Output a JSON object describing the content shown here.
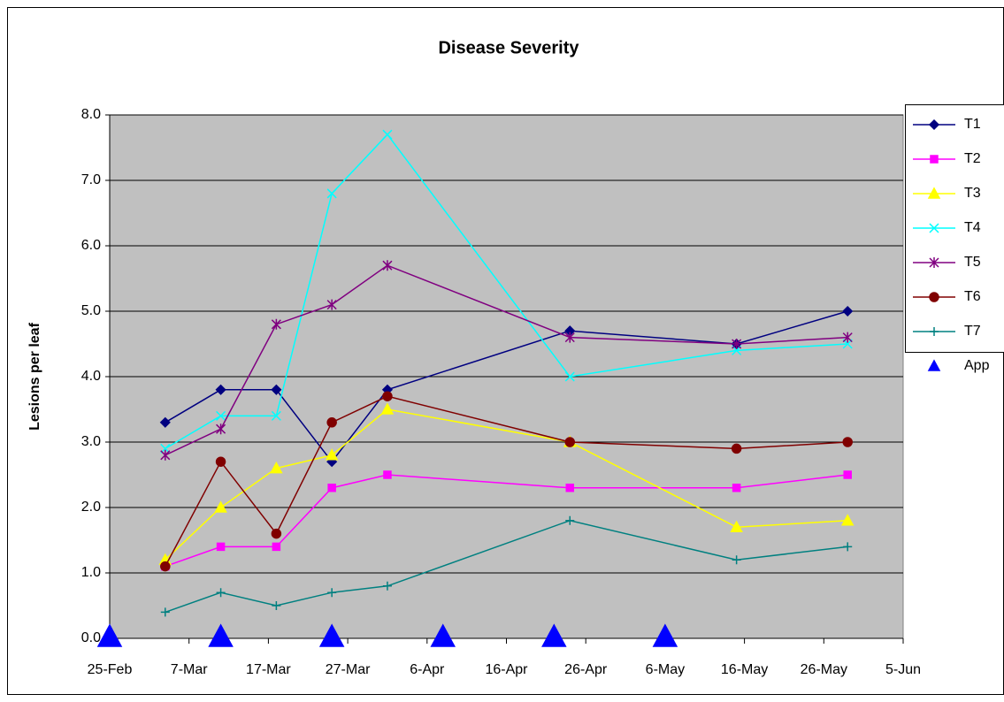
{
  "chart_data": {
    "type": "line",
    "title": "Disease Severity",
    "y_label": "Lesions per leaf",
    "x": [
      63,
      70,
      77,
      84,
      91,
      114,
      135,
      149
    ],
    "xlim": [
      56,
      156
    ],
    "xticks": [
      {
        "value": 56,
        "label": "25-Feb"
      },
      {
        "value": 66,
        "label": "7-Mar"
      },
      {
        "value": 76,
        "label": "17-Mar"
      },
      {
        "value": 86,
        "label": "27-Mar"
      },
      {
        "value": 96,
        "label": "6-Apr"
      },
      {
        "value": 106,
        "label": "16-Apr"
      },
      {
        "value": 116,
        "label": "26-Apr"
      },
      {
        "value": 126,
        "label": "6-May"
      },
      {
        "value": 136,
        "label": "16-May"
      },
      {
        "value": 146,
        "label": "26-May"
      },
      {
        "value": 156,
        "label": "5-Jun"
      }
    ],
    "ylim": [
      0,
      8
    ],
    "yticks": [
      {
        "value": 0,
        "label": "0.0"
      },
      {
        "value": 1,
        "label": "1.0"
      },
      {
        "value": 2,
        "label": "2.0"
      },
      {
        "value": 3,
        "label": "3.0"
      },
      {
        "value": 4,
        "label": "4.0"
      },
      {
        "value": 5,
        "label": "5.0"
      },
      {
        "value": 6,
        "label": "6.0"
      },
      {
        "value": 7,
        "label": "7.0"
      },
      {
        "value": 8,
        "label": "8.0"
      }
    ],
    "grid": true,
    "legend": "right",
    "series": [
      {
        "name": "T1",
        "color": "#000080",
        "marker": "diamond",
        "values": [
          3.3,
          3.8,
          3.8,
          2.7,
          3.8,
          4.7,
          4.5,
          5.0
        ]
      },
      {
        "name": "T2",
        "color": "#ff00ff",
        "marker": "square",
        "values": [
          1.1,
          1.4,
          1.4,
          2.3,
          2.5,
          2.3,
          2.3,
          2.5
        ]
      },
      {
        "name": "T3",
        "color": "#ffff00",
        "marker": "triangle",
        "values": [
          1.2,
          2.0,
          2.6,
          2.8,
          3.5,
          3.0,
          1.7,
          1.8
        ]
      },
      {
        "name": "T4",
        "color": "#00ffff",
        "marker": "x",
        "values": [
          2.9,
          3.4,
          3.4,
          6.8,
          7.7,
          4.0,
          4.4,
          4.5
        ]
      },
      {
        "name": "T5",
        "color": "#800080",
        "marker": "star",
        "values": [
          2.8,
          3.2,
          4.8,
          5.1,
          5.7,
          4.6,
          4.5,
          4.6
        ]
      },
      {
        "name": "T6",
        "color": "#800000",
        "marker": "circle",
        "values": [
          1.1,
          2.7,
          1.6,
          3.3,
          3.7,
          3.0,
          2.9,
          3.0
        ]
      },
      {
        "name": "T7",
        "color": "#008080",
        "marker": "plus",
        "values": [
          0.4,
          0.7,
          0.5,
          0.7,
          0.8,
          1.8,
          1.2,
          1.4
        ]
      },
      {
        "name": "App",
        "color": "#0000ff",
        "marker": "big-triangle",
        "line": false,
        "x": [
          56,
          70,
          84,
          98,
          112,
          126
        ],
        "values": [
          0,
          0,
          0,
          0,
          0,
          0
        ]
      }
    ]
  }
}
